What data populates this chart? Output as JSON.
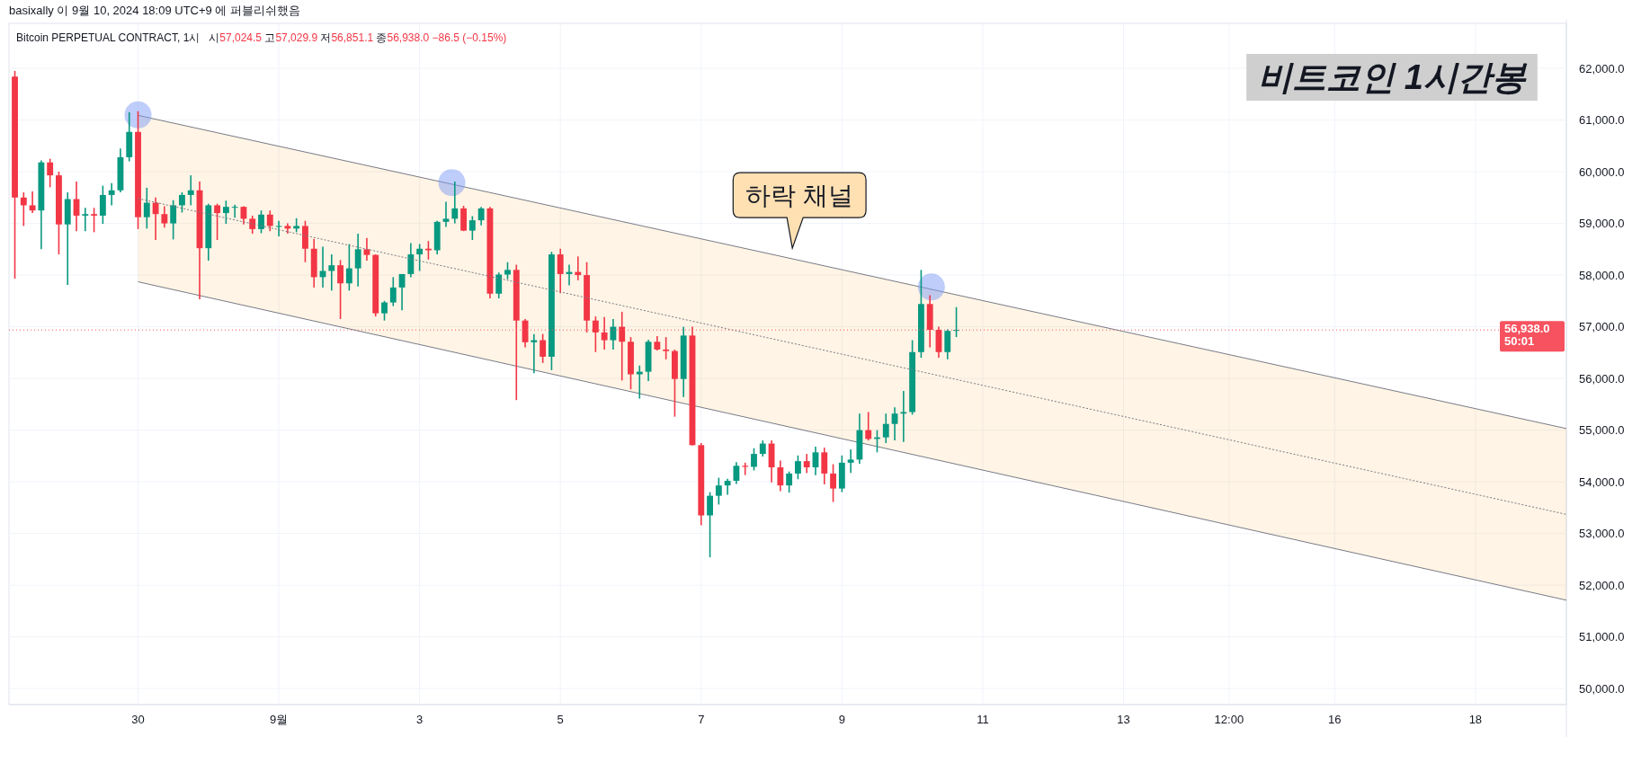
{
  "chart_data": {
    "type": "candlestick",
    "title": "비트코인 1시간봉",
    "annotations": [
      "basixally 이 9월 10, 2024 18:09 UTC+9 에 퍼블리쉬했음",
      "Bitcoin PERPETUAL CONTRACT, 1시",
      "시57,024.5 고57,029.9 저56,851.1 종56,938.0 −86.5 (−0.15%)",
      "하락 채널"
    ],
    "x": [
      "2024-08-28T06:00",
      "2024-08-28T09:00",
      "2024-08-28T12:00",
      "2024-08-28T15:00",
      "2024-08-28T18:00",
      "2024-08-28T21:00",
      "2024-08-29T00:00",
      "2024-08-29T03:00",
      "2024-08-29T06:00",
      "2024-08-29T09:00",
      "2024-08-29T12:00",
      "2024-08-29T15:00",
      "2024-08-29T18:00",
      "2024-08-29T21:00",
      "2024-08-30T00:00",
      "2024-08-30T03:00",
      "2024-08-30T06:00",
      "2024-08-30T09:00",
      "2024-08-30T12:00",
      "2024-08-30T15:00",
      "2024-08-30T18:00",
      "2024-08-30T21:00",
      "2024-08-31T00:00",
      "2024-08-31T03:00",
      "2024-08-31T06:00",
      "2024-08-31T09:00",
      "2024-08-31T12:00",
      "2024-08-31T15:00",
      "2024-08-31T18:00",
      "2024-08-31T21:00",
      "2024-09-01T00:00",
      "2024-09-01T03:00",
      "2024-09-01T06:00",
      "2024-09-01T09:00",
      "2024-09-01T12:00",
      "2024-09-01T15:00",
      "2024-09-01T18:00",
      "2024-09-01T21:00",
      "2024-09-02T00:00",
      "2024-09-02T03:00",
      "2024-09-02T06:00",
      "2024-09-02T09:00",
      "2024-09-02T12:00",
      "2024-09-02T15:00",
      "2024-09-02T18:00",
      "2024-09-02T21:00",
      "2024-09-03T00:00",
      "2024-09-03T03:00",
      "2024-09-03T06:00",
      "2024-09-03T09:00",
      "2024-09-03T12:00",
      "2024-09-03T15:00",
      "2024-09-03T18:00",
      "2024-09-03T21:00",
      "2024-09-04T00:00",
      "2024-09-04T03:00",
      "2024-09-04T06:00",
      "2024-09-04T09:00",
      "2024-09-04T12:00",
      "2024-09-04T15:00",
      "2024-09-04T18:00",
      "2024-09-04T21:00",
      "2024-09-05T00:00",
      "2024-09-05T03:00",
      "2024-09-05T06:00",
      "2024-09-05T09:00",
      "2024-09-05T12:00",
      "2024-09-05T15:00",
      "2024-09-05T18:00",
      "2024-09-05T21:00",
      "2024-09-06T00:00",
      "2024-09-06T03:00",
      "2024-09-06T06:00",
      "2024-09-06T09:00",
      "2024-09-06T12:00",
      "2024-09-06T15:00",
      "2024-09-06T18:00",
      "2024-09-06T21:00",
      "2024-09-07T00:00",
      "2024-09-07T03:00",
      "2024-09-07T06:00",
      "2024-09-07T09:00",
      "2024-09-07T12:00",
      "2024-09-07T15:00",
      "2024-09-07T18:00",
      "2024-09-07T21:00",
      "2024-09-08T00:00",
      "2024-09-08T03:00",
      "2024-09-08T06:00",
      "2024-09-08T09:00",
      "2024-09-08T12:00",
      "2024-09-08T15:00",
      "2024-09-08T18:00",
      "2024-09-08T21:00",
      "2024-09-09T00:00",
      "2024-09-09T03:00",
      "2024-09-09T06:00",
      "2024-09-09T09:00",
      "2024-09-09T12:00",
      "2024-09-09T15:00",
      "2024-09-09T18:00",
      "2024-09-09T21:00",
      "2024-09-10T00:00",
      "2024-09-10T03:00",
      "2024-09-10T06:00",
      "2024-09-10T09:00",
      "2024-09-10T12:00",
      "2024-09-10T15:00"
    ],
    "ohlc": [
      [
        61840,
        61950,
        57930,
        59500
      ],
      [
        59500,
        59600,
        58950,
        59350
      ],
      [
        59350,
        59620,
        59200,
        59250
      ],
      [
        59250,
        60220,
        58500,
        60180
      ],
      [
        60180,
        60250,
        59700,
        59930
      ],
      [
        59930,
        60000,
        58400,
        58980
      ],
      [
        58980,
        59600,
        57810,
        59470
      ],
      [
        59470,
        59810,
        58850,
        59150
      ],
      [
        59150,
        59300,
        58850,
        59180
      ],
      [
        59180,
        59300,
        58830,
        59150
      ],
      [
        59150,
        59730,
        58990,
        59550
      ],
      [
        59550,
        59780,
        59350,
        59640
      ],
      [
        59640,
        60450,
        59600,
        60280
      ],
      [
        60280,
        61150,
        60200,
        60770
      ],
      [
        60770,
        61170,
        58890,
        59120
      ],
      [
        59120,
        59690,
        58900,
        59400
      ],
      [
        59400,
        59500,
        58680,
        59180
      ],
      [
        59180,
        59330,
        58920,
        59000
      ],
      [
        59000,
        59450,
        58690,
        59350
      ],
      [
        59350,
        59600,
        59210,
        59550
      ],
      [
        59550,
        59930,
        59350,
        59640
      ],
      [
        59640,
        59810,
        57530,
        58520
      ],
      [
        58520,
        59380,
        58280,
        59350
      ],
      [
        59350,
        59380,
        58680,
        59200
      ],
      [
        59200,
        59440,
        58990,
        59320
      ],
      [
        59320,
        59360,
        59110,
        59320
      ],
      [
        59320,
        59330,
        58980,
        59090
      ],
      [
        59090,
        59150,
        58800,
        58890
      ],
      [
        58890,
        59250,
        58810,
        59170
      ],
      [
        59170,
        59250,
        58850,
        58950
      ],
      [
        58950,
        59050,
        58750,
        58950
      ],
      [
        58950,
        59000,
        58800,
        58900
      ],
      [
        58900,
        59100,
        58830,
        58950
      ],
      [
        58950,
        59050,
        58250,
        58510
      ],
      [
        58510,
        58700,
        57760,
        57960
      ],
      [
        57960,
        58550,
        57760,
        58080
      ],
      [
        58080,
        58400,
        57700,
        58190
      ],
      [
        58190,
        58290,
        57150,
        57840
      ],
      [
        57840,
        58600,
        57700,
        58130
      ],
      [
        58130,
        58800,
        57780,
        58500
      ],
      [
        58500,
        58720,
        58280,
        58390
      ],
      [
        58390,
        58400,
        57200,
        57260
      ],
      [
        57260,
        57500,
        57120,
        57470
      ],
      [
        57470,
        57960,
        57400,
        57760
      ],
      [
        57760,
        58020,
        57320,
        58020
      ],
      [
        58020,
        58620,
        57960,
        58400
      ],
      [
        58400,
        58600,
        58080,
        58510
      ],
      [
        58510,
        58660,
        58300,
        58480
      ],
      [
        58480,
        59050,
        58400,
        59030
      ],
      [
        59030,
        59420,
        58930,
        59090
      ],
      [
        59090,
        59810,
        59000,
        59290
      ],
      [
        59290,
        59340,
        58850,
        58860
      ],
      [
        58860,
        59140,
        58680,
        59060
      ],
      [
        59060,
        59320,
        58960,
        59290
      ],
      [
        59290,
        59320,
        57550,
        57640
      ],
      [
        57640,
        58050,
        57550,
        58010
      ],
      [
        58010,
        58250,
        57920,
        58100
      ],
      [
        58100,
        58200,
        55580,
        57120
      ],
      [
        57120,
        57150,
        56600,
        56700
      ],
      [
        56700,
        56860,
        56100,
        56740
      ],
      [
        56740,
        56860,
        56300,
        56420
      ],
      [
        56420,
        58450,
        56160,
        58400
      ],
      [
        58400,
        58510,
        57650,
        58020
      ],
      [
        58020,
        58200,
        57800,
        58060
      ],
      [
        58060,
        58360,
        57900,
        58000
      ],
      [
        58000,
        58250,
        56890,
        57120
      ],
      [
        57120,
        57200,
        56510,
        56890
      ],
      [
        56890,
        57190,
        56560,
        56740
      ],
      [
        56740,
        57150,
        56560,
        57000
      ],
      [
        57000,
        57290,
        55960,
        56710
      ],
      [
        56710,
        56800,
        55790,
        56080
      ],
      [
        56080,
        56250,
        55610,
        56130
      ],
      [
        56130,
        56750,
        55950,
        56710
      ],
      [
        56710,
        56820,
        56540,
        56560
      ],
      [
        56560,
        56800,
        56370,
        56530
      ],
      [
        56530,
        56560,
        55260,
        55990
      ],
      [
        55990,
        57000,
        55640,
        56830
      ],
      [
        56830,
        57000,
        54700,
        54710
      ],
      [
        54710,
        54750,
        53160,
        53350
      ],
      [
        53350,
        53800,
        52540,
        53730
      ],
      [
        53730,
        54080,
        53560,
        53930
      ],
      [
        53930,
        54060,
        53750,
        54020
      ],
      [
        54020,
        54380,
        53960,
        54310
      ],
      [
        54310,
        54370,
        54130,
        54290
      ],
      [
        54290,
        54650,
        54220,
        54540
      ],
      [
        54540,
        54800,
        54490,
        54740
      ],
      [
        54740,
        54800,
        53990,
        54280
      ],
      [
        54280,
        54410,
        53820,
        53930
      ],
      [
        53930,
        54200,
        53790,
        54160
      ],
      [
        54160,
        54510,
        54050,
        54400
      ],
      [
        54400,
        54540,
        54170,
        54280
      ],
      [
        54280,
        54680,
        54130,
        54570
      ],
      [
        54570,
        54660,
        53950,
        54160
      ],
      [
        54160,
        54340,
        53610,
        53870
      ],
      [
        53870,
        54510,
        53800,
        54370
      ],
      [
        54370,
        54630,
        54170,
        54430
      ],
      [
        54430,
        55320,
        54350,
        55000
      ],
      [
        55000,
        55350,
        54800,
        54830
      ],
      [
        54830,
        55000,
        54570,
        54860
      ],
      [
        54860,
        55320,
        54750,
        55120
      ],
      [
        55120,
        55440,
        54800,
        55320
      ],
      [
        55320,
        55760,
        54770,
        55350
      ],
      [
        55350,
        56740,
        55300,
        56510
      ],
      [
        56510,
        58100,
        56400,
        57440
      ],
      [
        57440,
        57610,
        56600,
        56940
      ],
      [
        56940,
        57000,
        56400,
        56510
      ],
      [
        56510,
        56950,
        56370,
        56920
      ],
      [
        56920,
        57380,
        56800,
        56938
      ]
    ],
    "series": [
      {
        "type": "line",
        "x": [
          "2024-08-30T00:00",
          "2024-09-19T07:00"
        ],
        "values": [
          61090,
          55030
        ],
        "color": "#787b86",
        "line_style": "solid"
      },
      {
        "type": "line",
        "x": [
          "2024-08-30T00:00",
          "2024-09-19T07:00"
        ],
        "values": [
          57870,
          51710
        ],
        "color": "#787b86",
        "line_style": "solid"
      },
      {
        "type": "line",
        "x": [
          "2024-08-30T00:00",
          "2024-09-19T07:00"
        ],
        "values": [
          59480,
          53370
        ],
        "lower": [
          57870,
          51710
        ],
        "upper": [
          61090,
          55030
        ],
        "color": "#787b86",
        "line_style": "dotted"
      },
      {
        "type": "scatter",
        "x": [
          "2024-08-30T00:00",
          "2024-09-03T11:00",
          "2024-09-10T06:30"
        ],
        "values": [
          61100,
          59790,
          57770
        ],
        "color": "#7e9cf5",
        "marker": "circle"
      }
    ],
    "xlim": [
      "2024-08-28T04:00",
      "2024-09-19T07:00"
    ],
    "xticks": [
      {
        "value": "2024-08-30",
        "label": "30"
      },
      {
        "value": "2024-09-01",
        "label": "9월"
      },
      {
        "value": "2024-09-03",
        "label": "3"
      },
      {
        "value": "2024-09-05",
        "label": "5"
      },
      {
        "value": "2024-09-07",
        "label": "7"
      },
      {
        "value": "2024-09-09",
        "label": "9"
      },
      {
        "value": "2024-09-11",
        "label": "11"
      },
      {
        "value": "2024-09-13",
        "label": "13"
      },
      {
        "value": "2024-09-14T12:00",
        "label": "12:00"
      },
      {
        "value": "2024-09-16",
        "label": "16"
      },
      {
        "value": "2024-09-18",
        "label": "18"
      }
    ],
    "ylim": [
      49690,
      62870
    ],
    "yticks": [
      {
        "value": 50000,
        "label": "50,000.0"
      },
      {
        "value": 51000,
        "label": "51,000.0"
      },
      {
        "value": 52000,
        "label": "52,000.0"
      },
      {
        "value": 53000,
        "label": "53,000.0"
      },
      {
        "value": 54000,
        "label": "54,000.0"
      },
      {
        "value": 55000,
        "label": "55,000.0"
      },
      {
        "value": 56000,
        "label": "56,000.0"
      },
      {
        "value": 57000,
        "label": "57,000.0"
      },
      {
        "value": 58000,
        "label": "58,000.0"
      },
      {
        "value": 59000,
        "label": "59,000.0"
      },
      {
        "value": 60000,
        "label": "60,000.0"
      },
      {
        "value": 61000,
        "label": "61,000.0"
      },
      {
        "value": 62000,
        "label": "62,000.0"
      }
    ],
    "grid": true,
    "ref_lines": [
      {
        "axis": "y",
        "value": 56938,
        "label": "56,938.0\n50:01",
        "color": "#f7525f"
      }
    ]
  }
}
